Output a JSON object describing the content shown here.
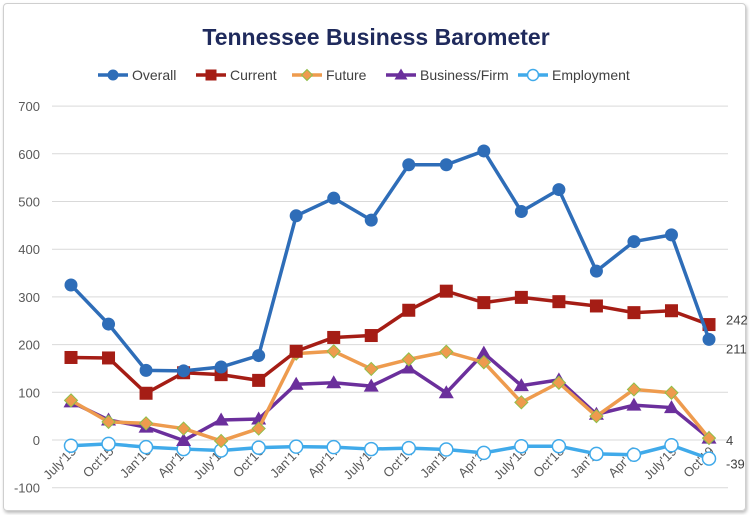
{
  "chart_data": {
    "type": "line",
    "title": "Tennessee Business Barometer",
    "xlabel": "",
    "ylabel": "",
    "ylim": [
      -100,
      700
    ],
    "yticks": [
      -100,
      0,
      100,
      200,
      300,
      400,
      500,
      600,
      700
    ],
    "grid": true,
    "legend": "top",
    "categories": [
      "July'15",
      "Oct'15",
      "Jan'16",
      "Apr'16",
      "July'16",
      "Oct'16",
      "Jan'17",
      "Apr'17",
      "July'17",
      "Oct'17",
      "Jan'18",
      "Apr'18",
      "July'18",
      "Oct'18",
      "Jan'19",
      "Apr'19",
      "July'19",
      "Oct'19"
    ],
    "series": [
      {
        "name": "Overall",
        "color": "#2e6db8",
        "marker": "circle",
        "values": [
          325,
          243,
          146,
          145,
          153,
          177,
          470,
          507,
          461,
          577,
          577,
          606,
          479,
          525,
          354,
          416,
          430,
          211
        ]
      },
      {
        "name": "Current",
        "color": "#a51d15",
        "marker": "square",
        "values": [
          173,
          172,
          98,
          141,
          137,
          125,
          186,
          215,
          219,
          272,
          312,
          288,
          299,
          290,
          281,
          267,
          271,
          242
        ]
      },
      {
        "name": "Future",
        "color": "#ee9b4e",
        "marker": "diamond",
        "values": [
          83,
          38,
          35,
          24,
          -2,
          24,
          181,
          186,
          149,
          169,
          185,
          163,
          79,
          120,
          50,
          106,
          99,
          4
        ]
      },
      {
        "name": "Business/Firm",
        "color": "#6b2f9c",
        "marker": "triangle",
        "values": [
          80,
          42,
          27,
          -1,
          42,
          44,
          117,
          120,
          113,
          151,
          99,
          182,
          114,
          126,
          54,
          73,
          68,
          4
        ]
      },
      {
        "name": "Employment",
        "color": "#40aaea",
        "marker": "hollow-circle",
        "values": [
          -12,
          -8,
          -15,
          -19,
          -22,
          -16,
          -14,
          -15,
          -19,
          -17,
          -20,
          -27,
          -13,
          -13,
          -29,
          -31,
          -11,
          -39
        ]
      }
    ],
    "annotations": [
      {
        "series": "Current",
        "category": "Oct'19",
        "text": "242"
      },
      {
        "series": "Overall",
        "category": "Oct'19",
        "text": "211"
      },
      {
        "series": "Business/Firm",
        "category": "Oct'19",
        "text": "4"
      },
      {
        "series": "Employment",
        "category": "Oct'19",
        "text": "-39"
      }
    ]
  }
}
